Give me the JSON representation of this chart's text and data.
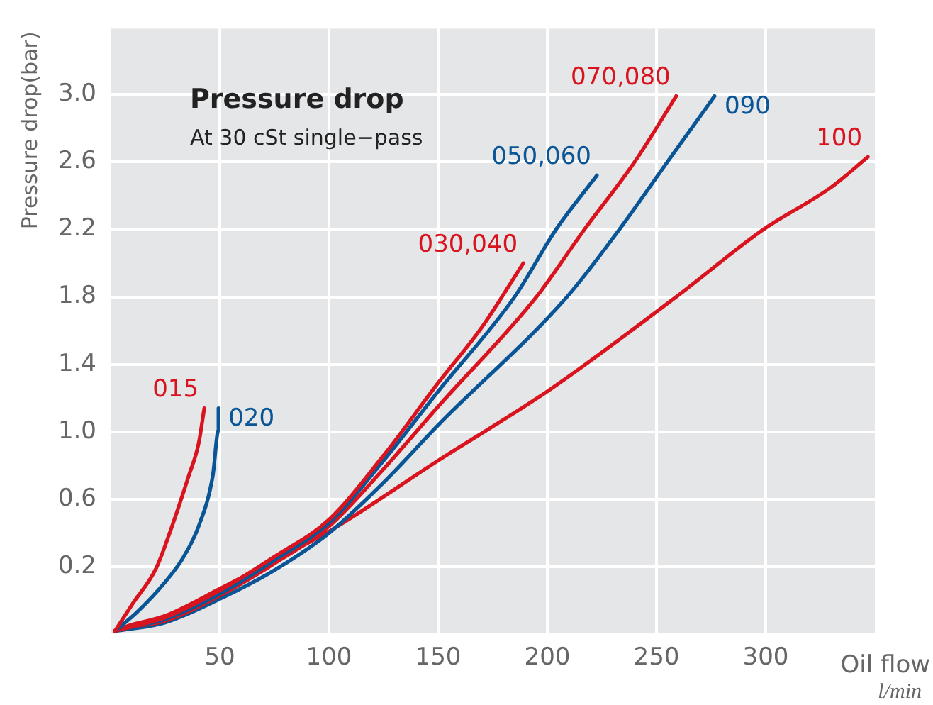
{
  "chart_data": {
    "type": "line",
    "title": "Pressure drop",
    "subtitle": "At 30 cSt single−pass",
    "xlabel": "Oil flow",
    "ylabel": "Pressure drop(bar)",
    "annotations": [
      "l/min"
    ],
    "xlim": [
      0,
      350
    ],
    "xticks": [
      50,
      100,
      150,
      200,
      250,
      300
    ],
    "ylim": [
      -0.19,
      3.39
    ],
    "yticks": [
      0.2,
      0.6,
      {
        "value": 1,
        "label": "1.0"
      },
      1.4,
      1.8,
      2.2,
      2.6,
      {
        "value": 3,
        "label": "3.0"
      }
    ],
    "grid": true,
    "legend": false,
    "marker": "none",
    "line_style": "solid",
    "series": [
      {
        "name": "015",
        "color": "#d9141f",
        "x": [
          2,
          10,
          20.8,
          27.3,
          35.8,
          40.3,
          42.9
        ],
        "values": [
          -0.18,
          -0.02,
          0.19,
          0.41,
          0.74,
          0.93,
          1.14
        ]
      },
      {
        "name": "020",
        "color": "#0a5596",
        "x": [
          2,
          12,
          25,
          33,
          40.3,
          46.8,
          49.4,
          49.4
        ],
        "values": [
          -0.18,
          -0.07,
          0.11,
          0.25,
          0.44,
          0.74,
          1.01,
          1.14
        ]
      },
      {
        "name": "030,040",
        "color": "#d9141f",
        "x": [
          2,
          8,
          25,
          50,
          75,
          100,
          125,
          150,
          170,
          189
        ],
        "values": [
          -0.18,
          -0.16,
          -0.1,
          0.06,
          0.26,
          0.48,
          0.86,
          1.29,
          1.62,
          2.0
        ]
      },
      {
        "name": "050,060",
        "color": "#0a5596",
        "x": [
          2,
          8,
          25,
          50,
          75,
          100,
          125,
          150,
          185,
          204,
          222.7
        ],
        "values": [
          -0.18,
          -0.16,
          -0.11,
          0.04,
          0.24,
          0.46,
          0.83,
          1.24,
          1.8,
          2.2,
          2.52
        ]
      },
      {
        "name": "070,080",
        "color": "#d9141f",
        "x": [
          2,
          8,
          25,
          50,
          75,
          100,
          125,
          150,
          195,
          217,
          240,
          259
        ],
        "values": [
          -0.18,
          -0.16,
          -0.12,
          0.03,
          0.22,
          0.44,
          0.78,
          1.15,
          1.8,
          2.2,
          2.6,
          2.99
        ]
      },
      {
        "name": "090",
        "color": "#0a5596",
        "x": [
          2,
          8,
          25,
          50,
          75,
          100,
          125,
          150,
          209,
          233,
          255,
          276.6
        ],
        "values": [
          -0.18,
          -0.17,
          -0.13,
          0.01,
          0.18,
          0.4,
          0.7,
          1.04,
          1.8,
          2.2,
          2.6,
          2.99
        ]
      },
      {
        "name": "100",
        "color": "#d9141f",
        "x": [
          2,
          8,
          25,
          50,
          75,
          100,
          150,
          200,
          259,
          299,
          330,
          346.8
        ],
        "values": [
          -0.18,
          -0.15,
          -0.09,
          0.07,
          0.24,
          0.41,
          0.83,
          1.24,
          1.8,
          2.2,
          2.45,
          2.63
        ]
      }
    ]
  }
}
